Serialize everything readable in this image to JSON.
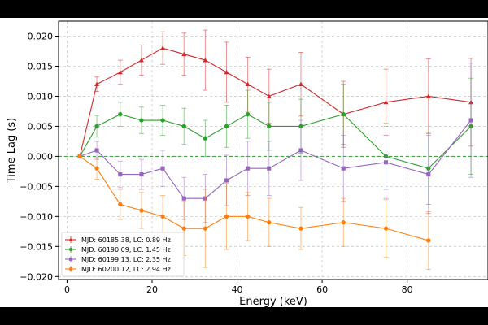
{
  "chart_data": {
    "type": "line",
    "title": "",
    "xlabel": "Energy (keV)",
    "ylabel": "Time Lag (s)",
    "xlim": [
      -2,
      99
    ],
    "ylim": [
      -0.0205,
      0.0225
    ],
    "xticks": [
      0,
      20,
      40,
      60,
      80
    ],
    "yticks": [
      -0.02,
      -0.015,
      -0.01,
      -0.005,
      0.0,
      0.005,
      0.01,
      0.015,
      0.02
    ],
    "ytick_labels": [
      "−0.020",
      "−0.015",
      "−0.010",
      "−0.005",
      "0.000",
      "0.005",
      "0.010",
      "0.015",
      "0.020"
    ],
    "grid": true,
    "reference_line": {
      "y": 0,
      "color": "#2ca02c",
      "style": "dashed"
    },
    "legend_position": "lower-left",
    "series": [
      {
        "name": "MJD: 60185.38, LC: 0.89 Hz",
        "color": "#d62728",
        "marker": "triangle",
        "x": [
          3,
          7,
          12.5,
          17.5,
          22.5,
          27.5,
          32.5,
          37.5,
          42.5,
          47.5,
          55,
          65,
          75,
          85,
          95
        ],
        "y": [
          0,
          0.012,
          0.014,
          0.016,
          0.018,
          0.017,
          0.016,
          0.014,
          0.012,
          0.01,
          0.012,
          0.007,
          0.009,
          0.01,
          0.009
        ],
        "err": [
          0,
          0.0012,
          0.002,
          0.0025,
          0.0027,
          0.0035,
          0.005,
          0.005,
          0.0045,
          0.0045,
          0.0053,
          0.0055,
          0.0055,
          0.0062,
          0.0073
        ]
      },
      {
        "name": "MJD: 60190.09, LC: 1.45 Hz",
        "color": "#2ca02c",
        "marker": "circle",
        "x": [
          3,
          7,
          12.5,
          17.5,
          22.5,
          27.5,
          32.5,
          37.5,
          42.5,
          47.5,
          55,
          65,
          75,
          85,
          95
        ],
        "y": [
          0,
          0.005,
          0.007,
          0.006,
          0.006,
          0.005,
          0.003,
          0.005,
          0.007,
          0.005,
          0.005,
          0.007,
          0.0,
          -0.002,
          0.005
        ],
        "err": [
          0,
          0.0018,
          0.002,
          0.0022,
          0.0025,
          0.003,
          0.003,
          0.0035,
          0.004,
          0.004,
          0.0045,
          0.005,
          0.0055,
          0.006,
          0.008
        ]
      },
      {
        "name": "MJD: 60199.13, LC: 2.35 Hz",
        "color": "#9467bd",
        "marker": "square",
        "x": [
          3,
          7,
          12.5,
          17.5,
          22.5,
          27.5,
          32.5,
          37.5,
          42.5,
          47.5,
          55,
          65,
          75,
          85,
          95
        ],
        "y": [
          0,
          0.001,
          -0.003,
          -0.003,
          -0.002,
          -0.007,
          -0.007,
          -0.004,
          -0.002,
          -0.002,
          0.001,
          -0.002,
          -0.001,
          -0.003,
          0.006
        ],
        "err": [
          0,
          0.0015,
          0.0022,
          0.0025,
          0.003,
          0.0035,
          0.004,
          0.0042,
          0.0045,
          0.0045,
          0.005,
          0.0055,
          0.006,
          0.0065,
          0.0095
        ]
      },
      {
        "name": "MJD: 60200.12, LC: 2.94 Hz",
        "color": "#ff7f0e",
        "marker": "circle",
        "x": [
          3,
          7,
          12.5,
          17.5,
          22.5,
          27.5,
          32.5,
          37.5,
          42.5,
          47.5,
          55,
          65,
          75,
          85
        ],
        "y": [
          0,
          -0.002,
          -0.008,
          -0.009,
          -0.01,
          -0.012,
          -0.012,
          -0.01,
          -0.01,
          -0.011,
          -0.012,
          -0.011,
          -0.012,
          -0.014
        ],
        "err": [
          0,
          0.0018,
          0.0025,
          0.003,
          0.0035,
          0.0045,
          0.0065,
          0.0055,
          0.004,
          0.004,
          0.0035,
          0.004,
          0.0048,
          0.0048
        ]
      }
    ]
  }
}
